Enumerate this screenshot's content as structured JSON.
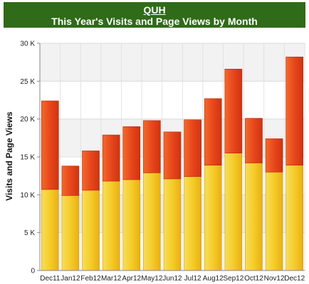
{
  "header": {
    "link": "QUH",
    "title": "This Year's Visits and Page Views by Month"
  },
  "colors": {
    "header_bg": "#2f6b18",
    "series_bottom": "#f2c21e",
    "series_top": "#e8481c"
  },
  "chart_data": {
    "type": "bar",
    "stacked": true,
    "title": "This Year's Visits and Page Views by Month",
    "xlabel": "",
    "ylabel": "Visits and Page Views",
    "ylim": [
      0,
      30000
    ],
    "y_ticks": [
      0,
      5000,
      10000,
      15000,
      20000,
      25000,
      30000
    ],
    "y_tick_labels": [
      "0",
      "5 K",
      "10 K",
      "15 K",
      "20 K",
      "25 K",
      "30 K"
    ],
    "grid": true,
    "categories": [
      "Dec11",
      "Jan12",
      "Feb12",
      "Mar12",
      "Apr12",
      "May12",
      "Jun12",
      "Jul12",
      "Aug12",
      "Sep12",
      "Oct12",
      "Nov12",
      "Dec12"
    ],
    "series": [
      {
        "values": [
          10700,
          9900,
          10600,
          11800,
          12000,
          12900,
          12100,
          12400,
          13900,
          15500,
          14200,
          13000,
          13900
        ]
      },
      {
        "values": [
          11700,
          3900,
          5200,
          6100,
          7000,
          6900,
          6200,
          7500,
          8800,
          11100,
          5900,
          4400,
          14300
        ]
      }
    ]
  }
}
